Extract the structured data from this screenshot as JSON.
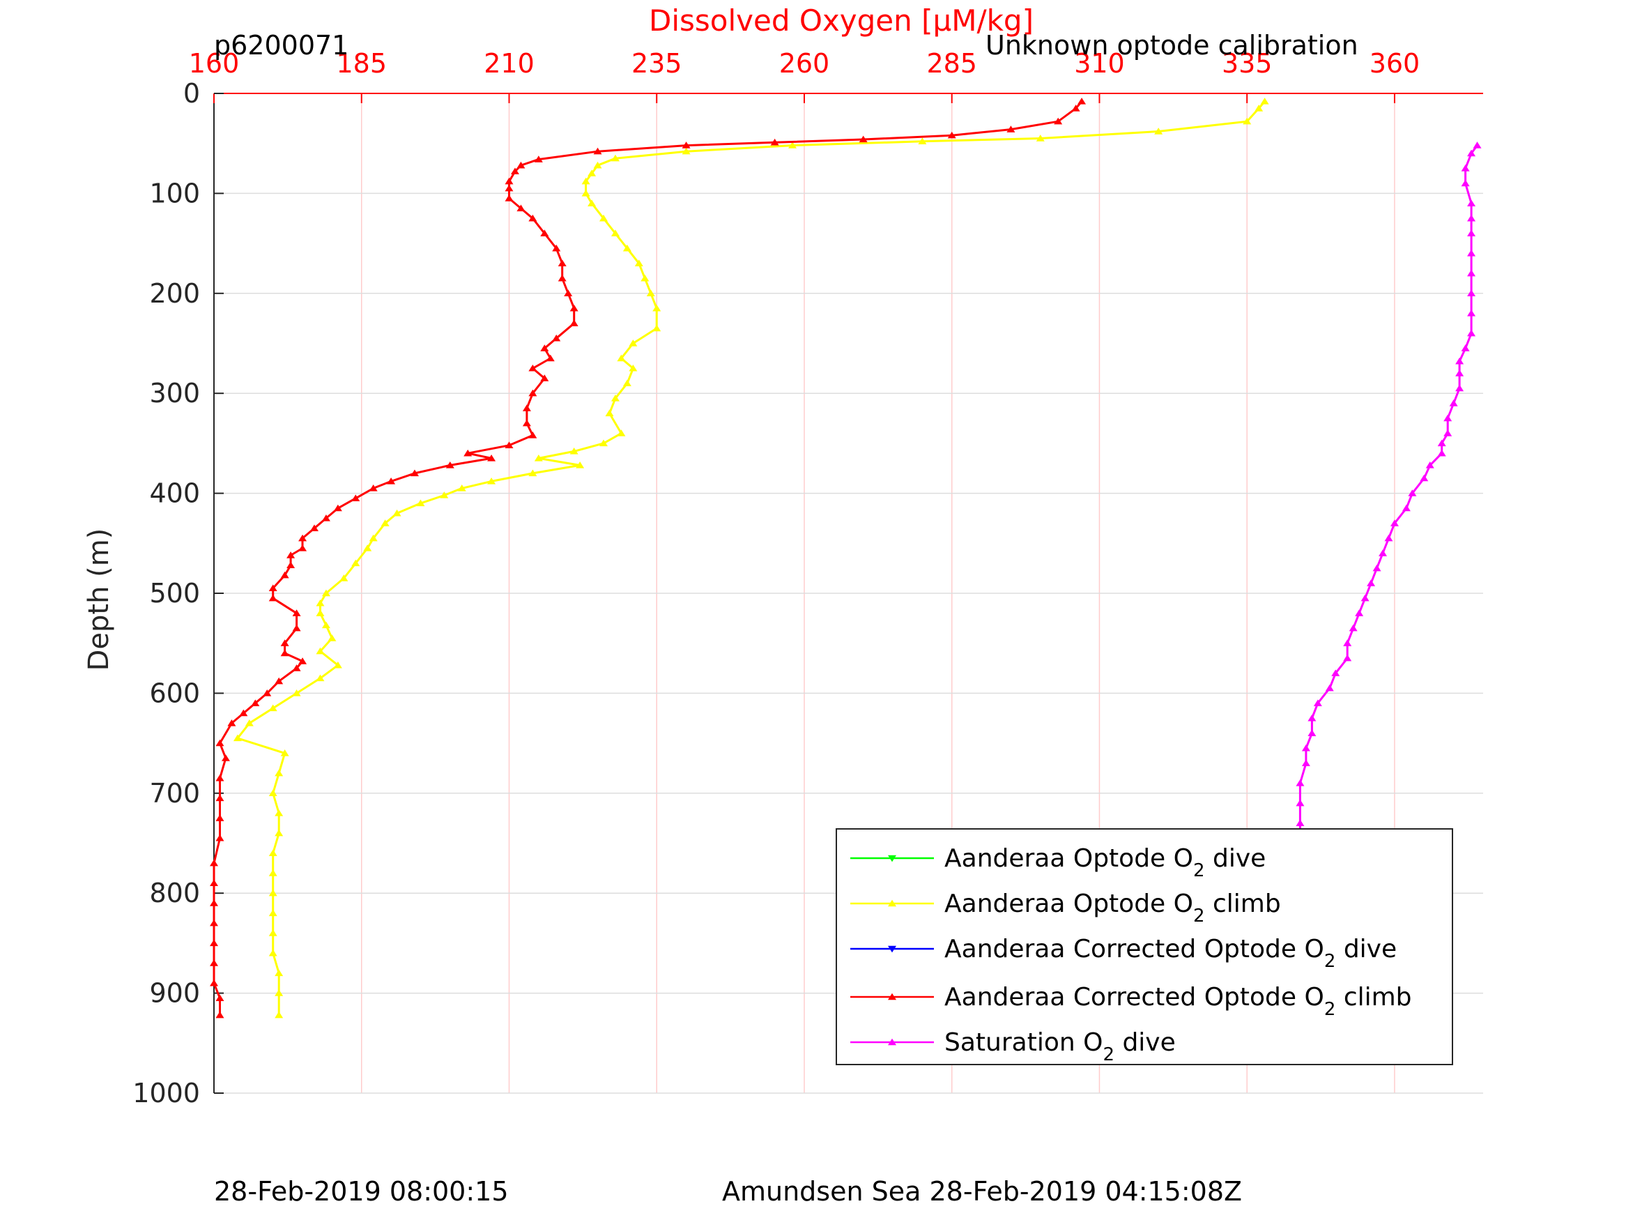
{
  "header": {
    "profile_id": "p6200071",
    "calibration_note": "Unknown optode calibration"
  },
  "footer": {
    "left_timestamp": "28-Feb-2019 08:00:15",
    "right_caption": "Amundsen Sea 28-Feb-2019 04:15:08Z"
  },
  "chart_data": {
    "type": "line",
    "xlabel": "Dissolved Oxygen [μM/kg]",
    "ylabel": "Depth (m)",
    "xlim": [
      160,
      375
    ],
    "ylim": [
      0,
      1000
    ],
    "y_reversed": true,
    "x_axis_position": "top",
    "x_ticks": [
      160,
      185,
      210,
      235,
      260,
      285,
      310,
      335,
      360
    ],
    "y_ticks": [
      0,
      100,
      200,
      300,
      400,
      500,
      600,
      700,
      800,
      900,
      1000
    ],
    "grid": true,
    "legend_position": "bottom-right",
    "colors": {
      "xaxis": "#ff0000",
      "grid_x": "#ffcccc",
      "grid_y": "#dddddd"
    },
    "legend": [
      {
        "prefix": "Aanderaa Optode O",
        "sub": "2",
        "suffix": " dive",
        "color": "#00ff00",
        "marker": "down"
      },
      {
        "prefix": "Aanderaa Optode O",
        "sub": "2",
        "suffix": " climb",
        "color": "#ffff00",
        "marker": "up"
      },
      {
        "prefix": "Aanderaa Corrected Optode O",
        "sub": "2",
        "suffix": " dive",
        "color": "#0000ff",
        "marker": "down"
      },
      {
        "prefix": "Aanderaa Corrected Optode O",
        "sub": "2",
        "suffix": " climb",
        "color": "#ff0000",
        "marker": "up"
      },
      {
        "prefix": "Saturation O",
        "sub": "2",
        "suffix": " dive",
        "color": "#ff00ff",
        "marker": "up"
      }
    ],
    "series": [
      {
        "name": "Aanderaa Optode O2 climb",
        "color": "#ffff00",
        "points": [
          [
            338,
            8
          ],
          [
            337,
            15
          ],
          [
            335,
            28
          ],
          [
            320,
            38
          ],
          [
            300,
            45
          ],
          [
            280,
            48
          ],
          [
            258,
            52
          ],
          [
            240,
            58
          ],
          [
            228,
            65
          ],
          [
            225,
            72
          ],
          [
            224,
            80
          ],
          [
            223,
            88
          ],
          [
            223,
            100
          ],
          [
            224,
            110
          ],
          [
            226,
            125
          ],
          [
            228,
            140
          ],
          [
            230,
            155
          ],
          [
            232,
            170
          ],
          [
            233,
            185
          ],
          [
            234,
            200
          ],
          [
            235,
            215
          ],
          [
            235,
            235
          ],
          [
            231,
            250
          ],
          [
            229,
            265
          ],
          [
            231,
            275
          ],
          [
            230,
            290
          ],
          [
            228,
            305
          ],
          [
            227,
            320
          ],
          [
            229,
            340
          ],
          [
            226,
            350
          ],
          [
            221,
            358
          ],
          [
            215,
            365
          ],
          [
            222,
            372
          ],
          [
            214,
            380
          ],
          [
            207,
            388
          ],
          [
            202,
            395
          ],
          [
            199,
            402
          ],
          [
            195,
            410
          ],
          [
            191,
            420
          ],
          [
            189,
            430
          ],
          [
            187,
            445
          ],
          [
            186,
            455
          ],
          [
            184,
            470
          ],
          [
            182,
            485
          ],
          [
            179,
            500
          ],
          [
            178,
            510
          ],
          [
            178,
            520
          ],
          [
            179,
            532
          ],
          [
            180,
            545
          ],
          [
            178,
            558
          ],
          [
            181,
            572
          ],
          [
            178,
            585
          ],
          [
            174,
            600
          ],
          [
            170,
            615
          ],
          [
            166,
            630
          ],
          [
            164,
            645
          ],
          [
            172,
            660
          ],
          [
            171,
            680
          ],
          [
            170,
            700
          ],
          [
            171,
            720
          ],
          [
            171,
            740
          ],
          [
            170,
            760
          ],
          [
            170,
            780
          ],
          [
            170,
            800
          ],
          [
            170,
            820
          ],
          [
            170,
            840
          ],
          [
            170,
            860
          ],
          [
            171,
            880
          ],
          [
            171,
            900
          ],
          [
            171,
            922
          ]
        ]
      },
      {
        "name": "Aanderaa Corrected Optode O2 climb",
        "color": "#ff0000",
        "points": [
          [
            307,
            8
          ],
          [
            306,
            15
          ],
          [
            303,
            28
          ],
          [
            295,
            36
          ],
          [
            285,
            42
          ],
          [
            270,
            46
          ],
          [
            255,
            49
          ],
          [
            240,
            52
          ],
          [
            225,
            58
          ],
          [
            215,
            66
          ],
          [
            212,
            72
          ],
          [
            211,
            78
          ],
          [
            210,
            88
          ],
          [
            210,
            95
          ],
          [
            210,
            105
          ],
          [
            212,
            115
          ],
          [
            214,
            125
          ],
          [
            216,
            140
          ],
          [
            218,
            155
          ],
          [
            219,
            170
          ],
          [
            219,
            185
          ],
          [
            220,
            200
          ],
          [
            221,
            215
          ],
          [
            221,
            230
          ],
          [
            218,
            245
          ],
          [
            216,
            255
          ],
          [
            217,
            265
          ],
          [
            214,
            275
          ],
          [
            216,
            285
          ],
          [
            214,
            300
          ],
          [
            213,
            315
          ],
          [
            213,
            330
          ],
          [
            214,
            342
          ],
          [
            210,
            352
          ],
          [
            203,
            360
          ],
          [
            207,
            365
          ],
          [
            200,
            372
          ],
          [
            194,
            380
          ],
          [
            190,
            388
          ],
          [
            187,
            395
          ],
          [
            184,
            405
          ],
          [
            181,
            415
          ],
          [
            179,
            425
          ],
          [
            177,
            435
          ],
          [
            175,
            445
          ],
          [
            175,
            455
          ],
          [
            173,
            462
          ],
          [
            173,
            472
          ],
          [
            172,
            482
          ],
          [
            170,
            495
          ],
          [
            170,
            505
          ],
          [
            174,
            520
          ],
          [
            174,
            535
          ],
          [
            172,
            550
          ],
          [
            172,
            560
          ],
          [
            175,
            568
          ],
          [
            174,
            575
          ],
          [
            171,
            588
          ],
          [
            169,
            600
          ],
          [
            167,
            610
          ],
          [
            165,
            620
          ],
          [
            163,
            630
          ],
          [
            161,
            650
          ],
          [
            162,
            665
          ],
          [
            161,
            685
          ],
          [
            161,
            705
          ],
          [
            161,
            725
          ],
          [
            161,
            745
          ],
          [
            160,
            770
          ],
          [
            160,
            790
          ],
          [
            160,
            810
          ],
          [
            160,
            830
          ],
          [
            160,
            850
          ],
          [
            160,
            870
          ],
          [
            160,
            890
          ],
          [
            161,
            905
          ],
          [
            161,
            922
          ]
        ]
      },
      {
        "name": "Saturation O2 dive",
        "color": "#ff00ff",
        "points": [
          [
            374,
            52
          ],
          [
            373,
            60
          ],
          [
            372,
            75
          ],
          [
            372,
            90
          ],
          [
            373,
            110
          ],
          [
            373,
            125
          ],
          [
            373,
            140
          ],
          [
            373,
            160
          ],
          [
            373,
            180
          ],
          [
            373,
            200
          ],
          [
            373,
            220
          ],
          [
            373,
            240
          ],
          [
            372,
            255
          ],
          [
            371,
            268
          ],
          [
            371,
            280
          ],
          [
            371,
            295
          ],
          [
            370,
            310
          ],
          [
            369,
            325
          ],
          [
            369,
            340
          ],
          [
            368,
            350
          ],
          [
            368,
            360
          ],
          [
            366,
            372
          ],
          [
            365,
            385
          ],
          [
            363,
            400
          ],
          [
            362,
            415
          ],
          [
            360,
            430
          ],
          [
            359,
            445
          ],
          [
            358,
            460
          ],
          [
            357,
            475
          ],
          [
            356,
            490
          ],
          [
            355,
            505
          ],
          [
            354,
            520
          ],
          [
            353,
            535
          ],
          [
            352,
            550
          ],
          [
            352,
            565
          ],
          [
            350,
            580
          ],
          [
            349,
            595
          ],
          [
            347,
            610
          ],
          [
            346,
            625
          ],
          [
            346,
            640
          ],
          [
            345,
            655
          ],
          [
            345,
            670
          ],
          [
            344,
            690
          ],
          [
            344,
            710
          ],
          [
            344,
            730
          ],
          [
            344,
            750
          ],
          [
            343,
            770
          ],
          [
            343,
            790
          ],
          [
            343,
            810
          ],
          [
            343,
            830
          ],
          [
            343,
            850
          ],
          [
            343,
            870
          ],
          [
            343,
            890
          ],
          [
            343,
            905
          ],
          [
            343,
            918
          ]
        ]
      }
    ]
  }
}
